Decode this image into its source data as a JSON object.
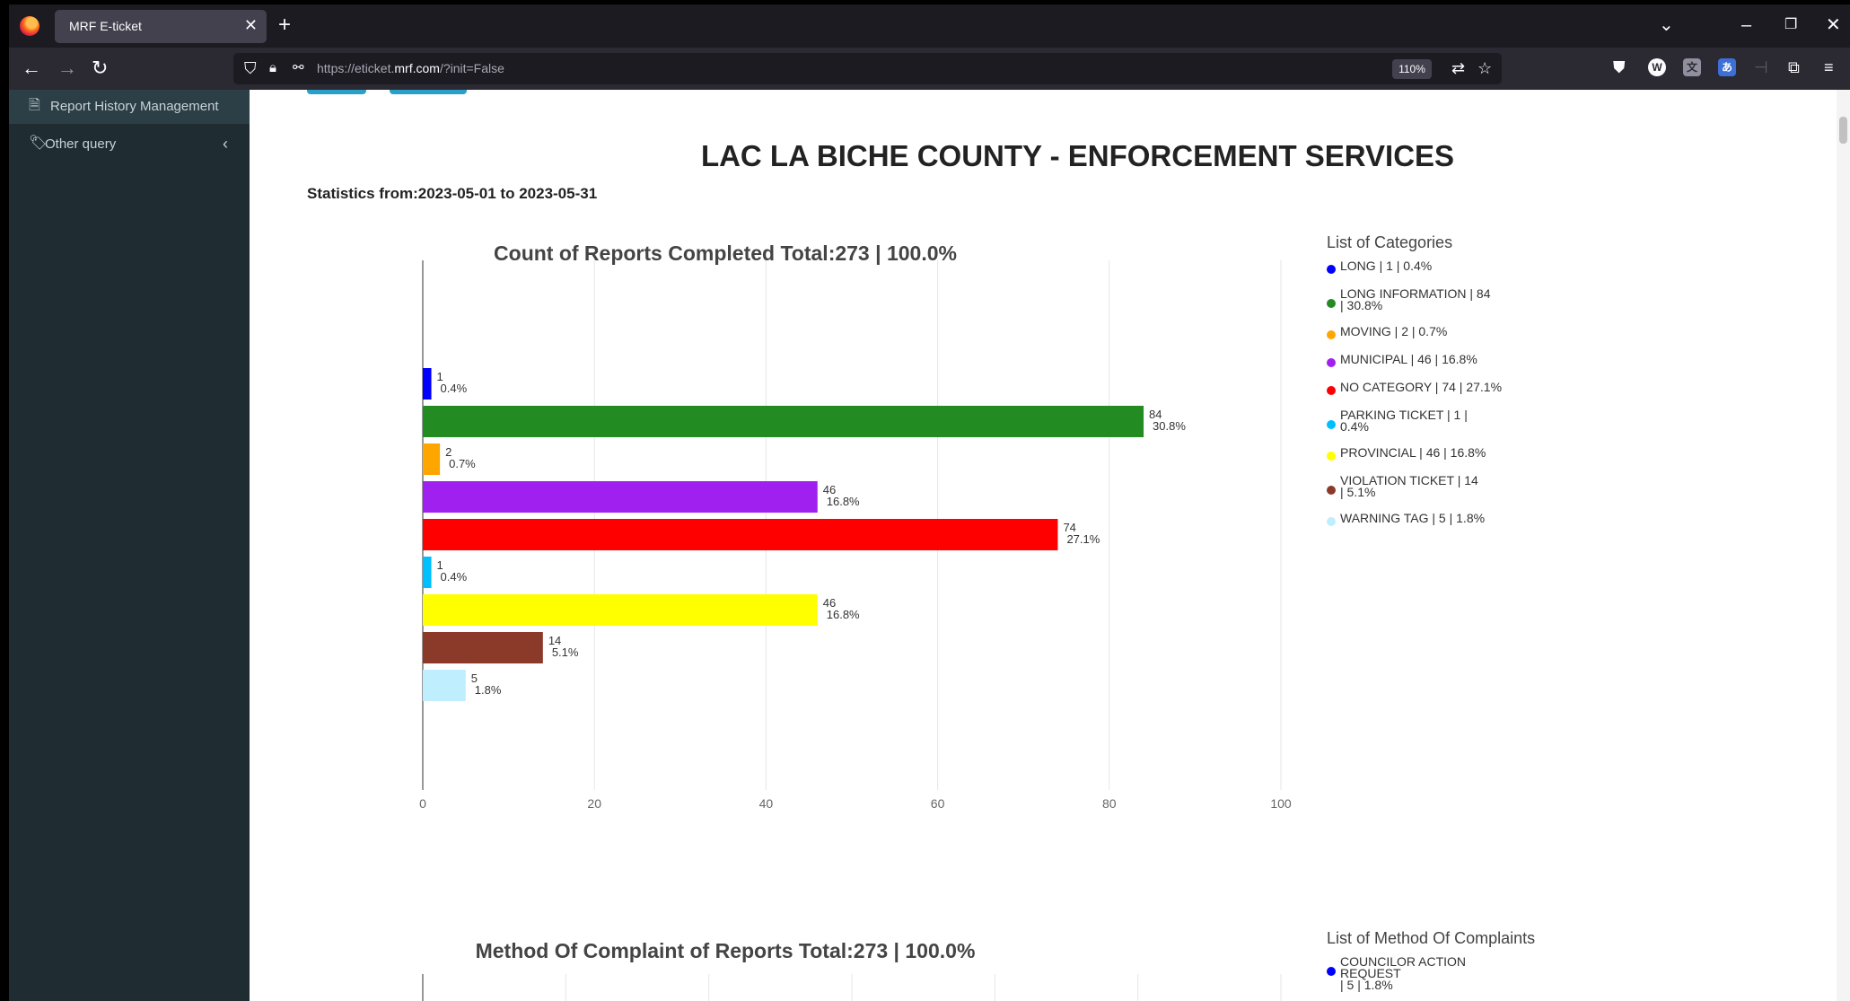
{
  "browser": {
    "tab_title": "MRF E-ticket",
    "url_prefix": "https://eticket.",
    "url_domain": "mrf.com",
    "url_suffix": "/?init=False",
    "zoom": "110%"
  },
  "sidebar": {
    "items": [
      {
        "label": "Report History Management",
        "icon": "document-icon"
      },
      {
        "label": "Other query",
        "icon": "tag-icon"
      }
    ]
  },
  "page": {
    "title": "LAC LA BICHE COUNTY - ENFORCEMENT SERVICES",
    "stats_label": "Statistics from:2023-05-01 to 2023-05-31"
  },
  "chart_data": [
    {
      "type": "bar",
      "orientation": "horizontal",
      "title": "Count of Reports Completed Total:273  |  100.0%",
      "legend_title": "List of Categories",
      "legend_position": "right",
      "xlim": [
        0,
        100
      ],
      "xticks": [
        0,
        20,
        40,
        60,
        80,
        100
      ],
      "grid": true,
      "categories": [
        "LONG",
        "LONG INFORMATION",
        "MOVING",
        "MUNICIPAL",
        "NO CATEGORY",
        "PARKING TICKET",
        "PROVINCIAL",
        "VIOLATION TICKET",
        "WARNING TAG"
      ],
      "values": [
        1,
        84,
        2,
        46,
        74,
        1,
        46,
        14,
        5
      ],
      "percents": [
        "0.4%",
        "30.8%",
        "0.7%",
        "16.8%",
        "27.1%",
        "0.4%",
        "16.8%",
        "5.1%",
        "1.8%"
      ],
      "colors": [
        "#0000ff",
        "#228b22",
        "#ffa500",
        "#a020f0",
        "#ff0000",
        "#00bfff",
        "#ffff00",
        "#8b3a2a",
        "#bfeeff"
      ],
      "legend": [
        [
          "LONG | 1 | 0.4%"
        ],
        [
          "LONG INFORMATION | 84",
          "| 30.8%"
        ],
        [
          "MOVING | 2 | 0.7%"
        ],
        [
          "MUNICIPAL | 46 | 16.8%"
        ],
        [
          "NO CATEGORY | 74 | 27.1%"
        ],
        [
          "PARKING TICKET | 1 |",
          "0.4%"
        ],
        [
          "PROVINCIAL | 46 | 16.8%"
        ],
        [
          "VIOLATION TICKET | 14",
          "| 5.1%"
        ],
        [
          "WARNING TAG | 5 | 1.8%"
        ]
      ]
    },
    {
      "type": "bar",
      "orientation": "horizontal",
      "title": "Method Of Complaint of Reports Total:273  |  100.0%",
      "legend_title": "List of Method Of Complaints",
      "legend_position": "right",
      "xlim": [
        0,
        120
      ],
      "grid": true,
      "legend": [
        [
          "COUNCILOR ACTION REQUEST",
          "| 5 | 1.8%"
        ]
      ],
      "legend_colors": [
        "#0000ff"
      ]
    }
  ]
}
